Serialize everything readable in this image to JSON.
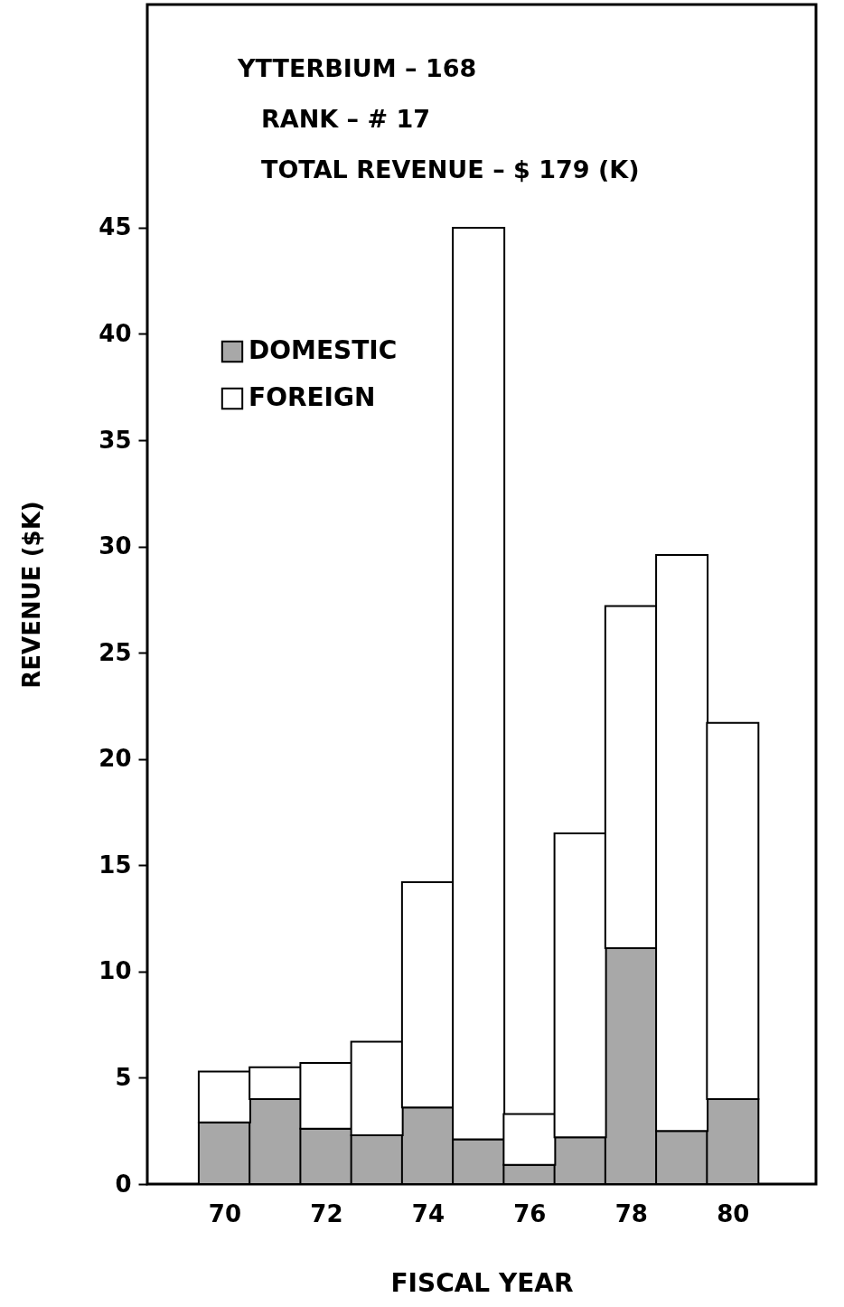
{
  "chart_data": {
    "type": "bar",
    "stacked": true,
    "annotations": [
      "YTTERBIUM – 168",
      "RANK – # 17",
      "TOTAL REVENUE – $ 179 (K)"
    ],
    "xlabel": "FISCAL YEAR",
    "ylabel": "REVENUE ($K)",
    "x": [
      70,
      71,
      72,
      73,
      74,
      75,
      76,
      77,
      78,
      79,
      80
    ],
    "series": [
      {
        "name": "DOMESTIC",
        "color": "#a8a8a8",
        "values": [
          2.9,
          4.0,
          2.6,
          2.3,
          3.6,
          2.1,
          0.9,
          2.2,
          11.1,
          2.5,
          4.0
        ]
      },
      {
        "name": "FOREIGN",
        "color": "#ffffff",
        "values": [
          2.4,
          1.5,
          3.1,
          4.4,
          10.6,
          42.9,
          2.4,
          14.3,
          16.1,
          27.1,
          17.7
        ]
      }
    ],
    "xlim": [
      68.57,
      81.55
    ],
    "xticks": [
      70,
      72,
      74,
      76,
      78,
      80
    ],
    "ylim": [
      0,
      55.5
    ],
    "yticks": [
      0,
      5,
      10,
      15,
      20,
      25,
      30,
      35,
      40,
      45
    ],
    "grid": false,
    "legend": "top left"
  }
}
